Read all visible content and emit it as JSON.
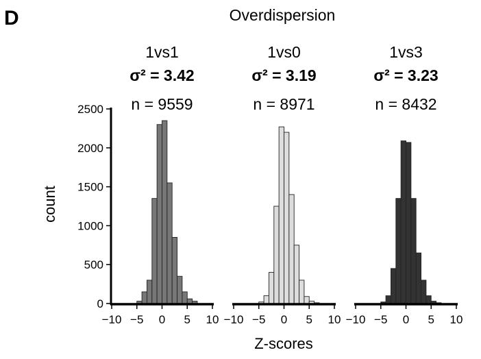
{
  "figure": {
    "panel_letter": "D",
    "title": "Overdispersion",
    "xlabel": "Z-scores",
    "ylabel": "count"
  },
  "chart_data": [
    {
      "type": "bar",
      "name": "1vs1",
      "color": "#777777",
      "sigma_label": "σ² = 3.42",
      "n_label": "n = 9559",
      "bin_edges_start": -5,
      "bin_width": 1,
      "values": [
        30,
        150,
        300,
        1350,
        2300,
        2350,
        1550,
        850,
        350,
        150,
        60,
        30
      ],
      "xlim": [
        -10,
        10
      ],
      "ylim": [
        0,
        2500
      ],
      "xticks": [
        "−10",
        "−5",
        "0",
        "5",
        "10"
      ],
      "yticks": [
        "0",
        "500",
        "1000",
        "1500",
        "2000",
        "2500"
      ]
    },
    {
      "type": "bar",
      "name": "1vs0",
      "color": "#dddddd",
      "sigma_label": "σ² = 3.19",
      "n_label": "n = 8971",
      "bin_edges_start": -5,
      "bin_width": 1,
      "values": [
        20,
        100,
        400,
        1250,
        2270,
        2200,
        1400,
        750,
        300,
        90,
        30,
        10
      ],
      "xlim": [
        -10,
        10
      ],
      "ylim": [
        0,
        2500
      ],
      "xticks": [
        "−10",
        "−5",
        "0",
        "5",
        "10"
      ]
    },
    {
      "type": "bar",
      "name": "1vs3",
      "color": "#333333",
      "sigma_label": "σ² = 3.23",
      "n_label": "n = 8432",
      "bin_edges_start": -5,
      "bin_width": 1,
      "values": [
        20,
        100,
        450,
        1350,
        2090,
        2070,
        1350,
        650,
        300,
        100,
        30,
        10
      ],
      "xlim": [
        -10,
        10
      ],
      "ylim": [
        0,
        2500
      ],
      "xticks": [
        "−10",
        "−5",
        "0",
        "5",
        "10"
      ]
    }
  ]
}
